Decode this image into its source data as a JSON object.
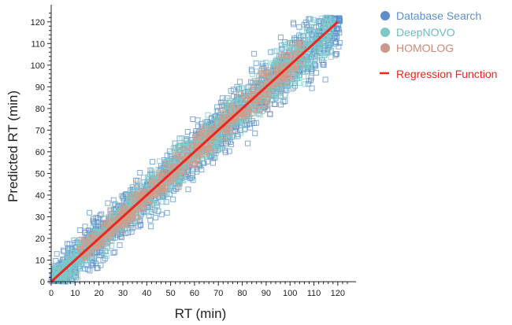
{
  "chart_data": {
    "type": "scatter",
    "xlabel": "RT (min)",
    "ylabel": "Predicted RT (min)",
    "xlim": [
      0,
      125
    ],
    "ylim": [
      0,
      125
    ],
    "xticks": [
      0,
      10,
      20,
      30,
      40,
      50,
      60,
      70,
      80,
      90,
      100,
      110,
      120
    ],
    "yticks": [
      0,
      10,
      20,
      30,
      40,
      50,
      60,
      70,
      80,
      90,
      100,
      110,
      120
    ],
    "grid": false,
    "legend_position": "top-right",
    "series": [
      {
        "name": "Database Search",
        "marker": "hollow-square",
        "color": "#5b8fc9",
        "x_range": [
          0,
          121
        ],
        "spread_min": 5
      },
      {
        "name": "DeepNOVO",
        "marker": "hollow-square",
        "color": "#7ec8c8",
        "x_range": [
          1,
          118
        ],
        "spread_min": 3.5
      },
      {
        "name": "HOMOLOG",
        "marker": "hollow-square",
        "color": "#d49a86",
        "x_range": [
          12,
          105
        ],
        "spread_min": 2.5
      }
    ],
    "regression": {
      "name": "Regression Function",
      "color": "#e8271f",
      "slope": 1.0,
      "intercept": 0,
      "x_range": [
        0,
        120
      ]
    }
  },
  "legend": {
    "items": [
      {
        "label": "Database Search",
        "color": "#5b8fc9",
        "text_color": "#5b8fc9",
        "symbol": "circle"
      },
      {
        "label": "DeepNOVO",
        "color": "#7ec8c8",
        "text_color": "#6bbcbc",
        "symbol": "circle"
      },
      {
        "label": "HOMOLOG",
        "color": "#c9998a",
        "text_color": "#d08878",
        "symbol": "circle"
      },
      {
        "label": "Regression Function",
        "color": "#e8271f",
        "text_color": "#e8271f",
        "symbol": "line"
      }
    ]
  }
}
